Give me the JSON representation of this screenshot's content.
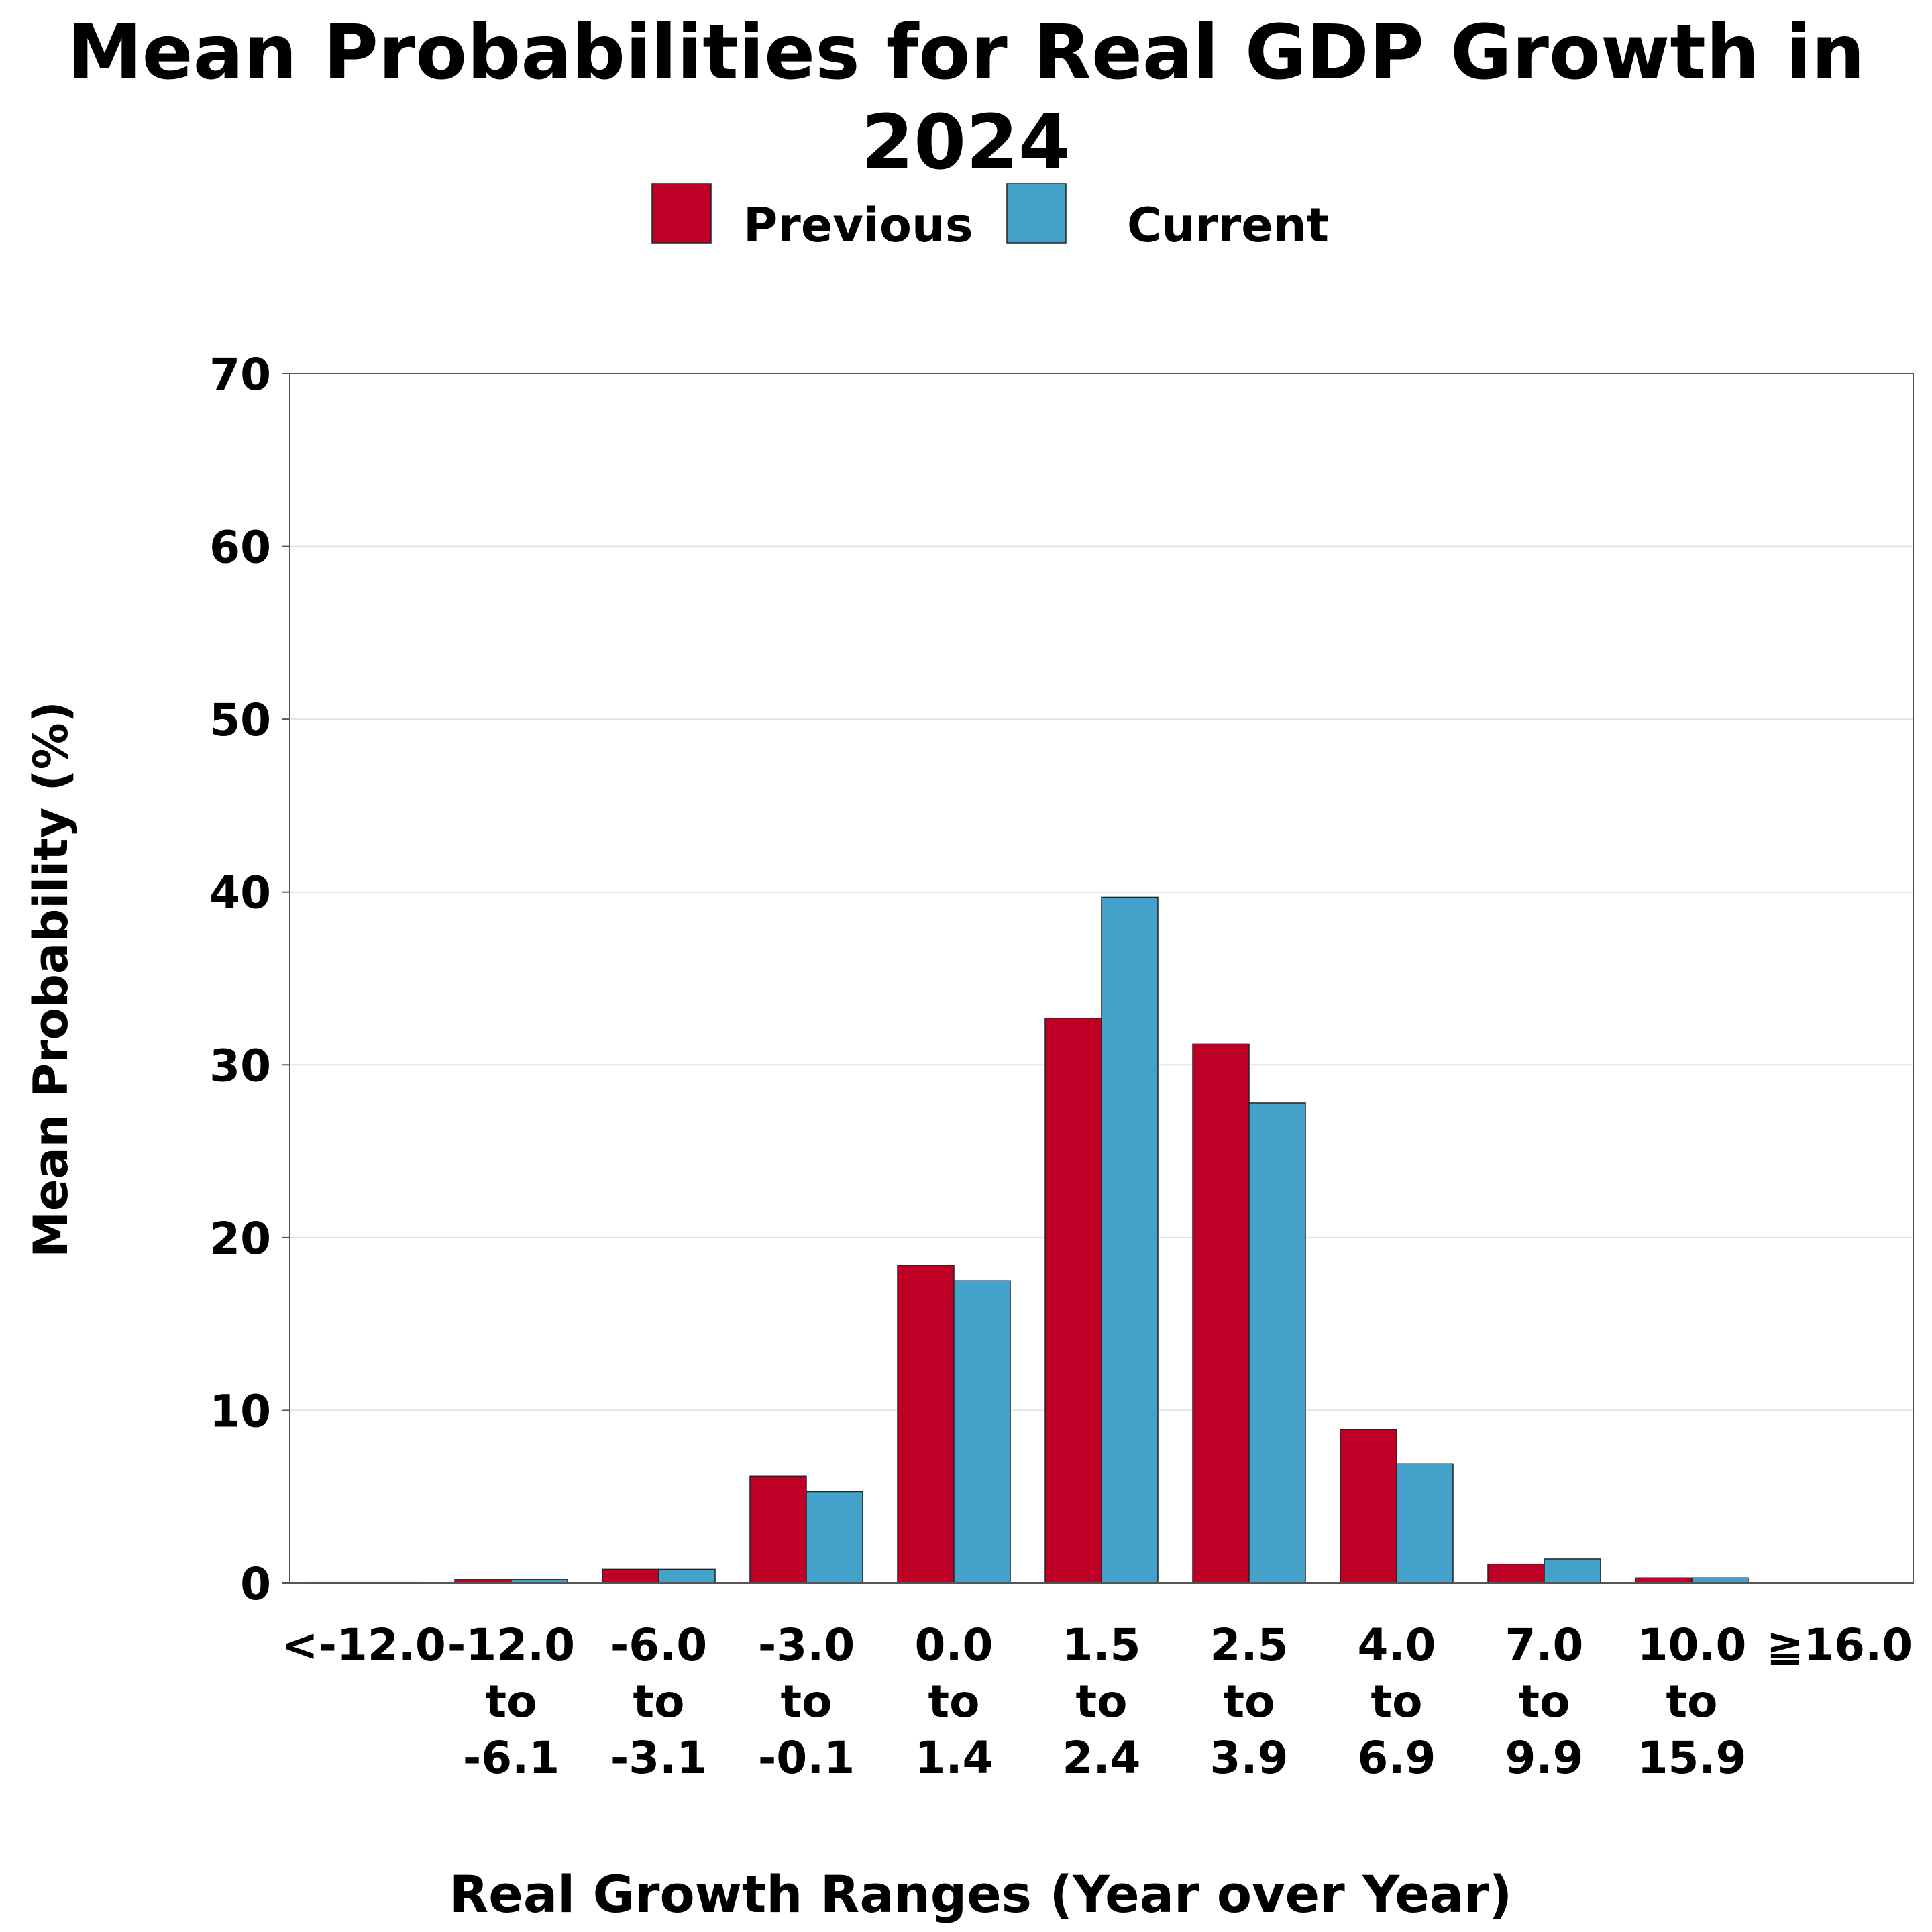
{
  "chart_data": {
    "type": "bar",
    "title": "Mean Probabilities for Real GDP Growth in 2024",
    "xlabel": "Real Growth Ranges (Year over Year)",
    "ylabel": "Mean Probability (%)",
    "ylim": [
      0,
      70
    ],
    "yticks": [
      0,
      10,
      20,
      30,
      40,
      50,
      60,
      70
    ],
    "grid": true,
    "legend_position": "top-center",
    "categories": [
      [
        "<-12.0"
      ],
      [
        "-12.0",
        "to",
        "-6.1"
      ],
      [
        "-6.0",
        "to",
        "-3.1"
      ],
      [
        "-3.0",
        "to",
        "-0.1"
      ],
      [
        "0.0",
        "to",
        "1.4"
      ],
      [
        "1.5",
        "to",
        "2.4"
      ],
      [
        "2.5",
        "to",
        "3.9"
      ],
      [
        "4.0",
        "to",
        "6.9"
      ],
      [
        "7.0",
        "to",
        "9.9"
      ],
      [
        "10.0",
        "to",
        "15.9"
      ],
      [
        "≧16.0"
      ]
    ],
    "series": [
      {
        "name": "Previous",
        "color": "#BE0027",
        "values": [
          0.05,
          0.2,
          0.8,
          6.2,
          18.4,
          32.7,
          31.2,
          8.9,
          1.1,
          0.3,
          0.0
        ]
      },
      {
        "name": "Current",
        "color": "#43A1CA",
        "values": [
          0.05,
          0.2,
          0.8,
          5.3,
          17.5,
          39.7,
          27.8,
          6.9,
          1.4,
          0.3,
          0.0
        ]
      }
    ]
  }
}
